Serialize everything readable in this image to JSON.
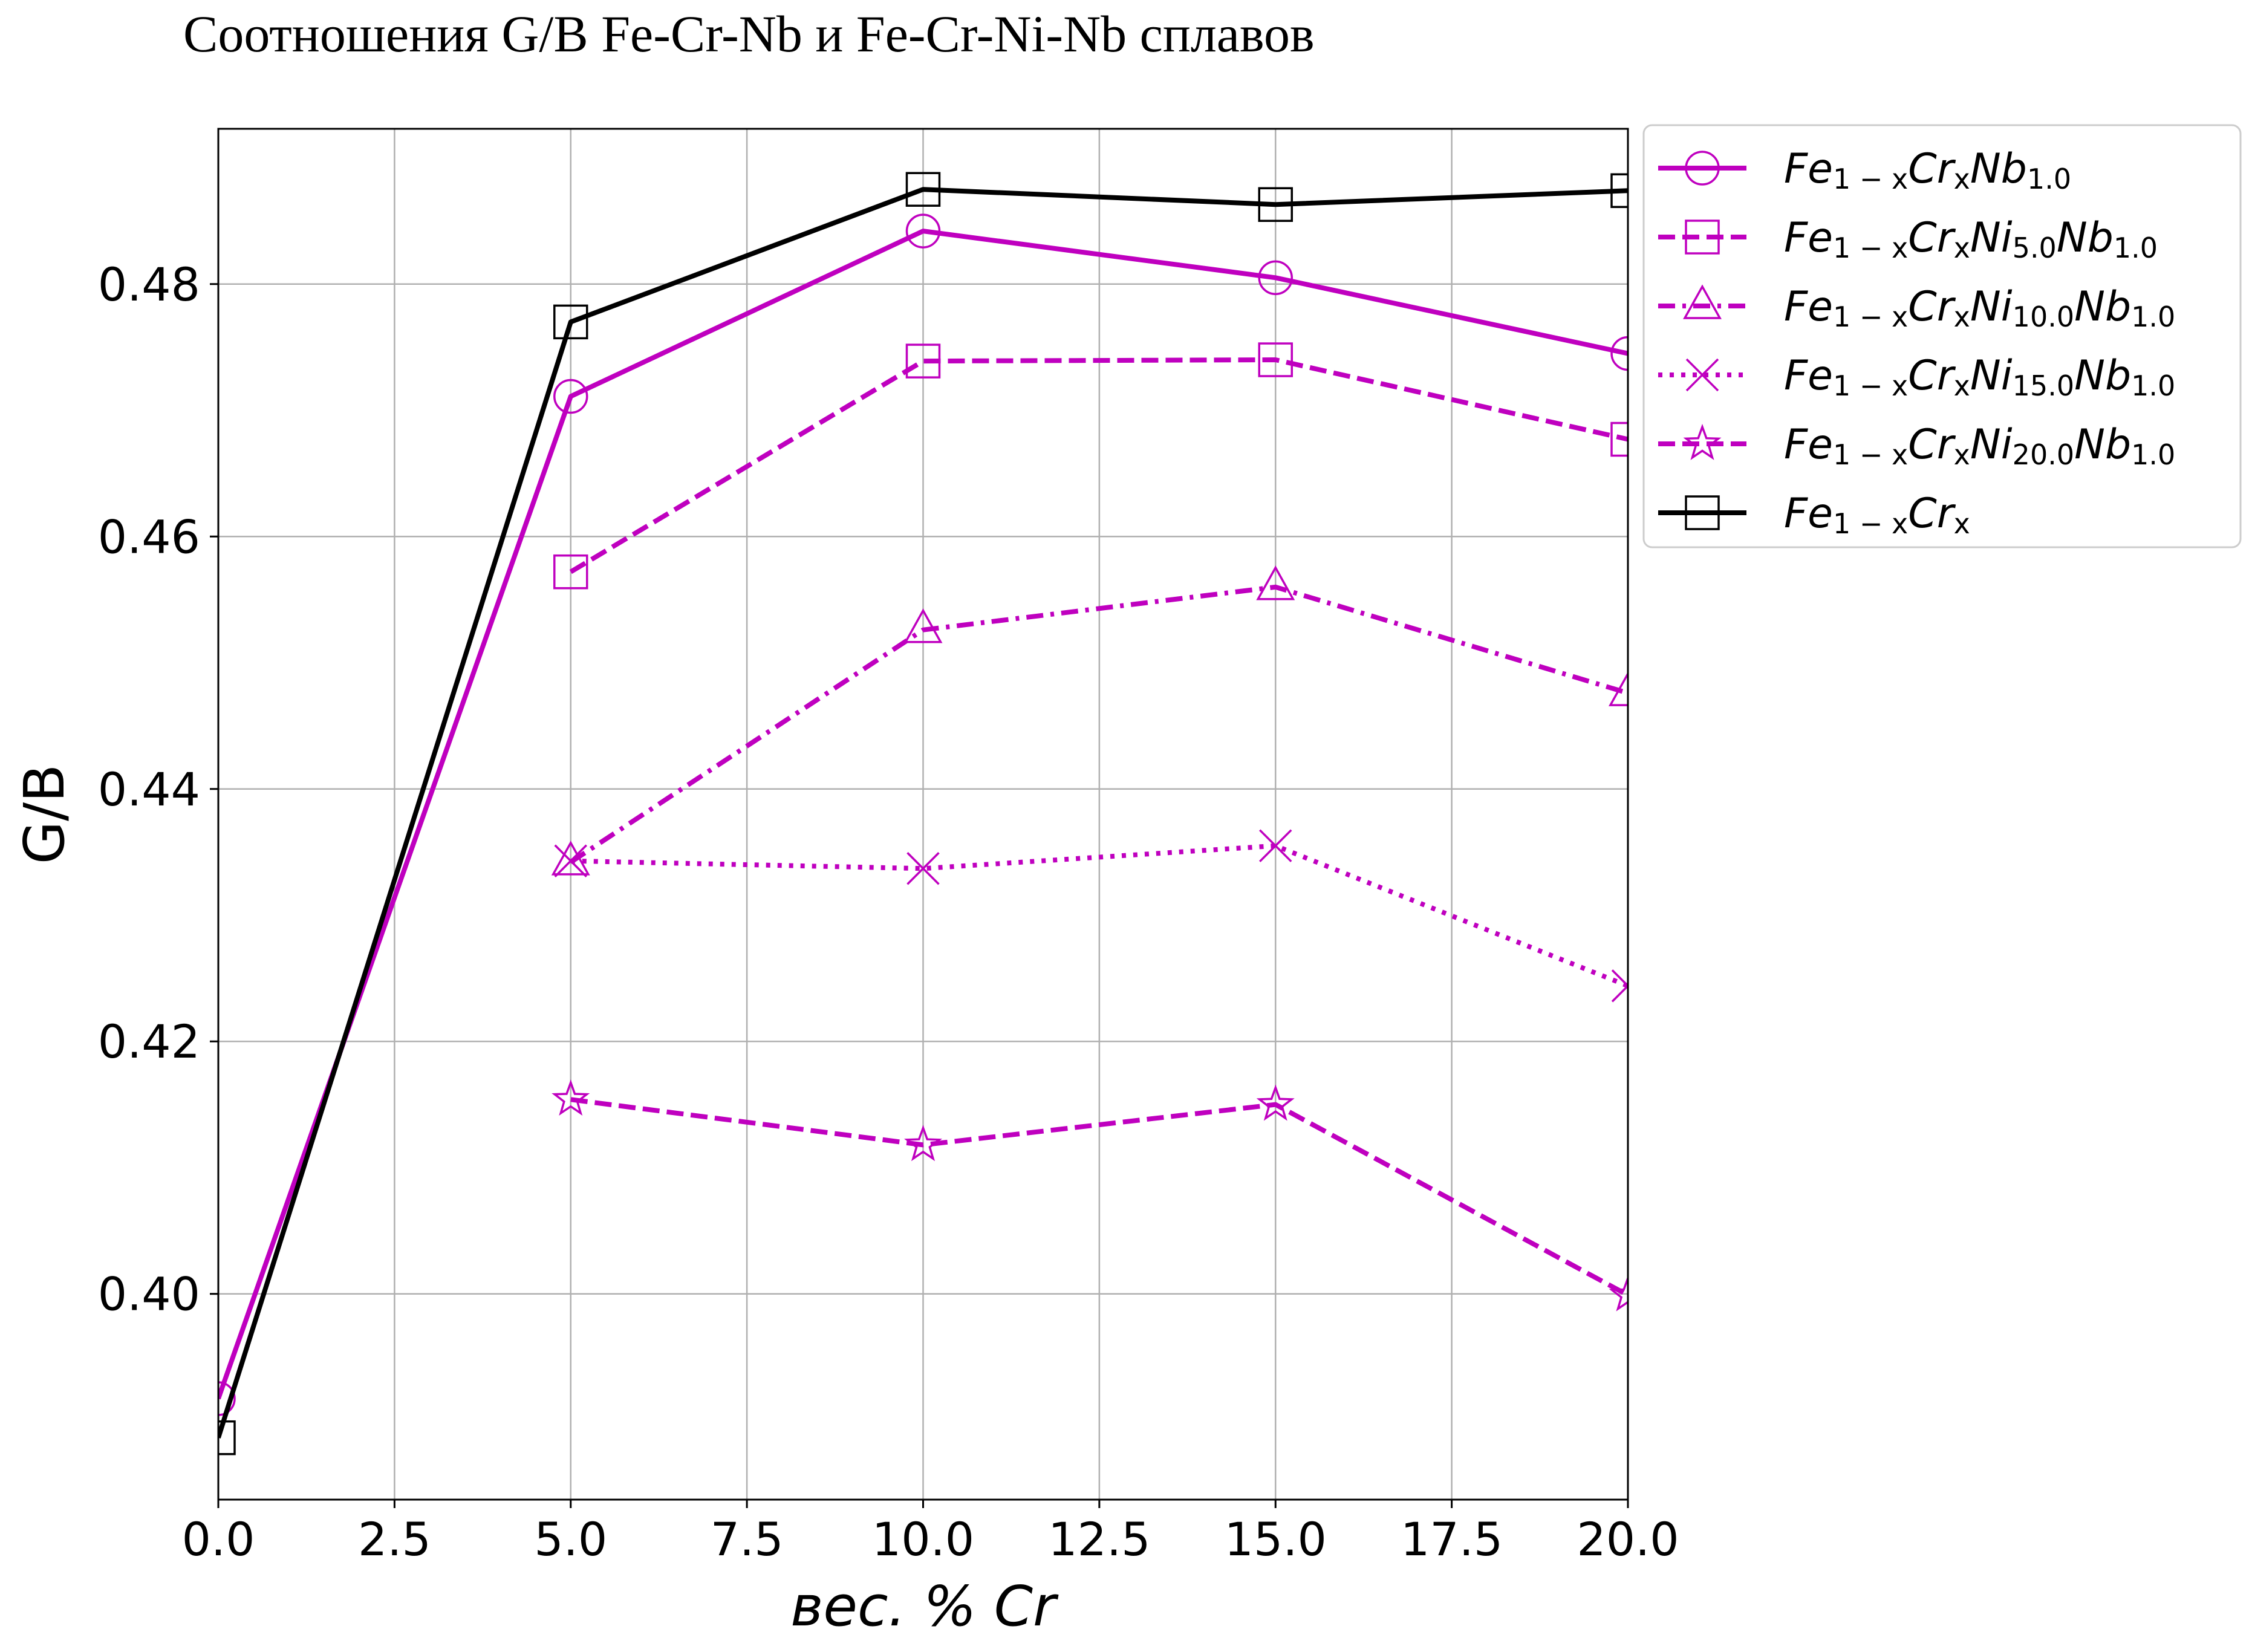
{
  "chart_data": {
    "type": "line",
    "title": "Соотношения G/B Fe-Cr-Nb и Fe-Cr-Ni-Nb сплавов",
    "xlabel": "вес. % Cr",
    "ylabel": "G/B",
    "xlim": [
      0.0,
      20.0
    ],
    "ylim": [
      0.3837,
      0.4923
    ],
    "xticks": [
      0.0,
      2.5,
      5.0,
      7.5,
      10.0,
      12.5,
      15.0,
      17.5,
      20.0
    ],
    "xtick_labels": [
      "0.0",
      "2.5",
      "5.0",
      "7.5",
      "10.0",
      "12.5",
      "15.0",
      "17.5",
      "20.0"
    ],
    "yticks": [
      0.4,
      0.42,
      0.44,
      0.46,
      0.48
    ],
    "ytick_labels": [
      "0.40",
      "0.42",
      "0.44",
      "0.46",
      "0.48"
    ],
    "grid": true,
    "legend_position": "outside-top-right",
    "series": [
      {
        "key": "nb",
        "legend": {
          "base": "Fe",
          "sub1": "1 − x",
          "mid1": "Cr",
          "sub2": "x",
          "mid2": "Nb",
          "sub3": "1.0",
          "mid3": "",
          "sub4": ""
        },
        "x": [
          0.0,
          5.0,
          10.0,
          15.0,
          20.0
        ],
        "y": [
          0.3917,
          0.4711,
          0.4842,
          0.4805,
          0.4745
        ],
        "color": "#bf00bf",
        "linestyle": "solid",
        "marker": "circle"
      },
      {
        "key": "ni5",
        "legend": {
          "base": "Fe",
          "sub1": "1 − x",
          "mid1": "Cr",
          "sub2": "x",
          "mid2": "Ni",
          "sub3": "5.0",
          "mid3": "Nb",
          "sub4": "1.0"
        },
        "x": [
          5.0,
          10.0,
          15.0,
          20.0
        ],
        "y": [
          0.4572,
          0.4739,
          0.474,
          0.4677
        ],
        "color": "#bf00bf",
        "linestyle": "dashed",
        "marker": "square"
      },
      {
        "key": "ni10",
        "legend": {
          "base": "Fe",
          "sub1": "1 − x",
          "mid1": "Cr",
          "sub2": "x",
          "mid2": "Ni",
          "sub3": "10.0",
          "mid3": "Nb",
          "sub4": "1.0"
        },
        "x": [
          5.0,
          10.0,
          15.0,
          20.0
        ],
        "y": [
          0.4342,
          0.4526,
          0.456,
          0.4476
        ],
        "color": "#bf00bf",
        "linestyle": "dashdot",
        "marker": "triangle"
      },
      {
        "key": "ni15",
        "legend": {
          "base": "Fe",
          "sub1": "1 − x",
          "mid1": "Cr",
          "sub2": "x",
          "mid2": "Ni",
          "sub3": "15.0",
          "mid3": "Nb",
          "sub4": "1.0"
        },
        "x": [
          5.0,
          10.0,
          15.0,
          20.0
        ],
        "y": [
          0.4343,
          0.4337,
          0.4355,
          0.4244
        ],
        "color": "#bf00bf",
        "linestyle": "dotted",
        "marker": "x"
      },
      {
        "key": "ni20",
        "legend": {
          "base": "Fe",
          "sub1": "1 − x",
          "mid1": "Cr",
          "sub2": "x",
          "mid2": "Ni",
          "sub3": "20.0",
          "mid3": "Nb",
          "sub4": "1.0"
        },
        "x": [
          5.0,
          10.0,
          15.0,
          20.0
        ],
        "y": [
          0.4154,
          0.4118,
          0.415,
          0.3999
        ],
        "color": "#bf00bf",
        "linestyle": "dashed",
        "marker": "star"
      },
      {
        "key": "fecr",
        "legend": {
          "base": "Fe",
          "sub1": "1 − x",
          "mid1": "Cr",
          "sub2": "x",
          "mid2": "",
          "sub3": "",
          "mid3": "",
          "sub4": ""
        },
        "x": [
          0.0,
          5.0,
          10.0,
          15.0,
          20.0
        ],
        "y": [
          0.3886,
          0.477,
          0.4875,
          0.4863,
          0.4874
        ],
        "color": "#000000",
        "linestyle": "solid",
        "marker": "square"
      }
    ]
  }
}
